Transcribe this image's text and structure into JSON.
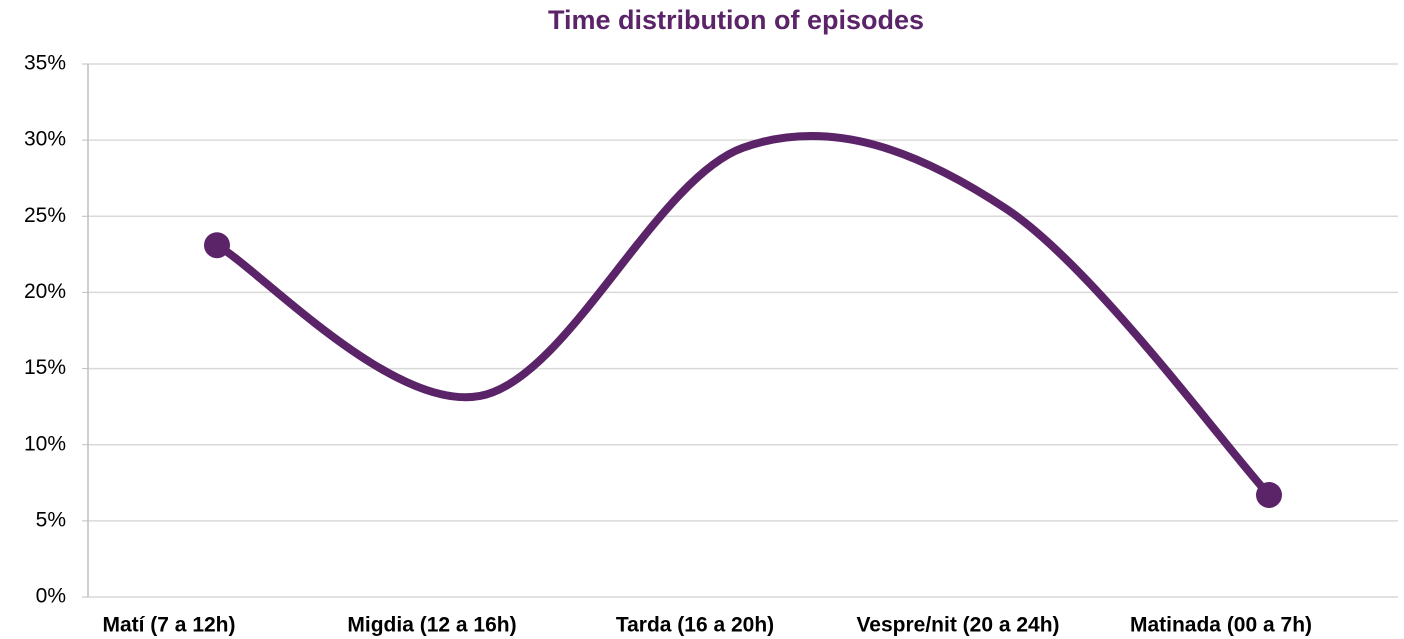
{
  "chart_data": {
    "type": "line",
    "title": "Time distribution of episodes",
    "categories": [
      "Matí (7 a 12h)",
      "Migdia (12 a 16h)",
      "Tarda (16 a 20h)",
      "Vespre/nit (20 a 24h)",
      "Matinada (00 a 7h)"
    ],
    "series": [
      {
        "name": "Episodes",
        "color": "#5b2368",
        "values": [
          23.1,
          13.2,
          29.5,
          25.5,
          6.7
        ]
      }
    ],
    "ylim": [
      0,
      35
    ],
    "yticks": [
      {
        "value": 0,
        "label": "0%"
      },
      {
        "value": 5,
        "label": "5%"
      },
      {
        "value": 10,
        "label": "10%"
      },
      {
        "value": 15,
        "label": "15%"
      },
      {
        "value": 20,
        "label": "20%"
      },
      {
        "value": 25,
        "label": "25%"
      },
      {
        "value": 30,
        "label": "30%"
      },
      {
        "value": 35,
        "label": "35%"
      }
    ],
    "grid": true,
    "smooth": true
  }
}
